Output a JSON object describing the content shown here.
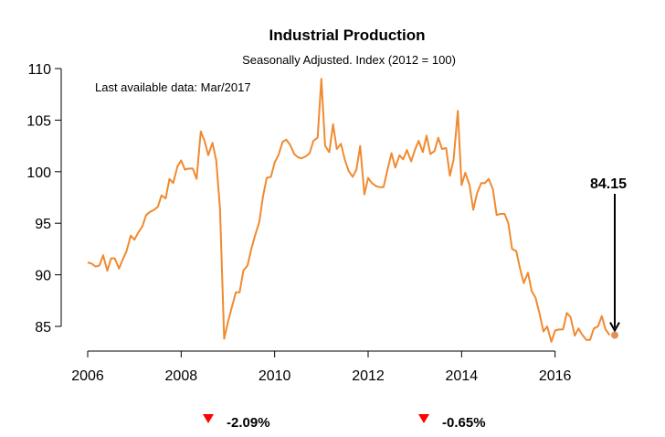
{
  "chart_data": {
    "type": "line",
    "title": "Industrial Production",
    "subtitle": "Seasonally Adjusted. Index (2012 = 100)",
    "note": "Last available data: Mar/2017",
    "xlabel": "",
    "ylabel": "",
    "xlim": [
      2006,
      2017.25
    ],
    "ylim": [
      83,
      110
    ],
    "x_ticks": [
      2006,
      2008,
      2010,
      2012,
      2014,
      2016
    ],
    "y_ticks": [
      85,
      90,
      95,
      100,
      105,
      110
    ],
    "grid": false,
    "last_value": {
      "x": 2017.17,
      "y": 84.15,
      "label": "84.15"
    },
    "changes": [
      {
        "label": "-2.09%",
        "direction": "down"
      },
      {
        "label": "-0.65%",
        "direction": "down"
      }
    ],
    "colors": {
      "line": "#f08a30",
      "last_point": "#e0905a",
      "arrow": "#000000",
      "down": "#ff0000"
    },
    "series": [
      {
        "x": [
          2006.0,
          2006.08,
          2006.17,
          2006.25,
          2006.33,
          2006.42,
          2006.5,
          2006.58,
          2006.67,
          2006.75,
          2006.83,
          2006.92,
          2007.0,
          2007.08,
          2007.17,
          2007.25,
          2007.33,
          2007.42,
          2007.5,
          2007.58,
          2007.67,
          2007.75,
          2007.83,
          2007.92,
          2008.0,
          2008.08,
          2008.17,
          2008.25,
          2008.33,
          2008.42,
          2008.5,
          2008.58,
          2008.67,
          2008.75,
          2008.83,
          2008.92,
          2009.0,
          2009.08,
          2009.17,
          2009.25,
          2009.33,
          2009.42,
          2009.5,
          2009.58,
          2009.67,
          2009.75,
          2009.83,
          2009.92,
          2010.0,
          2010.08,
          2010.17,
          2010.25,
          2010.33,
          2010.42,
          2010.5,
          2010.58,
          2010.67,
          2010.75,
          2010.83,
          2010.92,
          2011.0,
          2011.08,
          2011.17,
          2011.25,
          2011.33,
          2011.42,
          2011.5,
          2011.58,
          2011.67,
          2011.75,
          2011.83,
          2011.92,
          2012.0,
          2012.08,
          2012.17,
          2012.25,
          2012.33,
          2012.42,
          2012.5,
          2012.58,
          2012.67,
          2012.75,
          2012.83,
          2012.92,
          2013.0,
          2013.08,
          2013.17,
          2013.25,
          2013.33,
          2013.42,
          2013.5,
          2013.58,
          2013.67,
          2013.75,
          2013.83,
          2013.92,
          2014.0,
          2014.08,
          2014.17,
          2014.25,
          2014.33,
          2014.42,
          2014.5,
          2014.58,
          2014.67,
          2014.75,
          2014.83,
          2014.92,
          2015.0,
          2015.08,
          2015.17,
          2015.25,
          2015.33,
          2015.42,
          2015.5,
          2015.58,
          2015.67,
          2015.75,
          2015.83,
          2015.92,
          2016.0,
          2016.08,
          2016.17,
          2016.25,
          2016.33,
          2016.42,
          2016.5,
          2016.58,
          2016.67,
          2016.75,
          2016.83,
          2016.92,
          2017.0,
          2017.08,
          2017.17
        ],
        "values": [
          91.2,
          91.1,
          90.8,
          90.9,
          91.9,
          90.4,
          91.6,
          91.6,
          90.6,
          91.5,
          92.3,
          93.8,
          93.4,
          94.1,
          94.7,
          95.8,
          96.1,
          96.3,
          96.6,
          97.7,
          97.4,
          99.3,
          98.9,
          100.5,
          101.1,
          100.2,
          100.3,
          100.3,
          99.3,
          103.9,
          103.0,
          101.6,
          102.8,
          101.1,
          96.5,
          83.8,
          85.4,
          86.8,
          88.3,
          88.3,
          90.4,
          90.9,
          92.5,
          93.8,
          95.1,
          97.6,
          99.4,
          99.5,
          100.9,
          101.6,
          102.9,
          103.1,
          102.6,
          101.7,
          101.4,
          101.3,
          101.5,
          101.8,
          103.0,
          103.3,
          109.0,
          102.5,
          101.9,
          104.6,
          102.2,
          102.7,
          101.2,
          100.1,
          99.5,
          100.2,
          102.5,
          97.8,
          99.4,
          98.9,
          98.6,
          98.5,
          98.5,
          100.3,
          101.8,
          100.4,
          101.6,
          101.2,
          102.1,
          101.0,
          102.1,
          103.0,
          101.9,
          103.5,
          101.7,
          102.0,
          103.3,
          102.2,
          102.3,
          99.6,
          101.2,
          105.9,
          98.7,
          99.9,
          98.7,
          96.3,
          97.9,
          98.9,
          98.9,
          99.3,
          98.3,
          95.8,
          95.9,
          95.9,
          95.0,
          92.5,
          92.3,
          90.6,
          89.2,
          90.2,
          88.4,
          87.8,
          86.2,
          84.5,
          85.0,
          83.5,
          84.6,
          84.7,
          84.7,
          86.3,
          85.9,
          84.1,
          84.8,
          84.2,
          83.7,
          83.7,
          84.8,
          85.0,
          86.0,
          84.7,
          84.15
        ]
      }
    ]
  }
}
